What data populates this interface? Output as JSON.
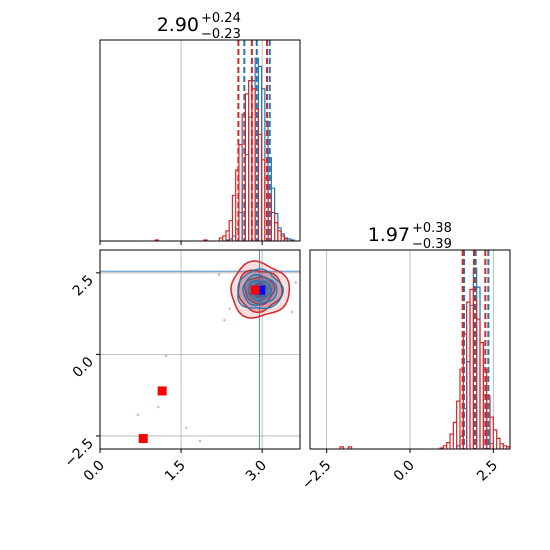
{
  "colors": {
    "blue": "#1f77b4",
    "red": "#d62728",
    "marker_blue": "#0000ff",
    "marker_red": "#ff0000",
    "grid": "#b0b0b0"
  },
  "chart_data": [
    {
      "type": "histogram",
      "panel": "x-marginal",
      "title": {
        "value": "2.90",
        "upper": "+0.24",
        "lower": "−0.23"
      },
      "xlim": [
        0,
        3.7
      ],
      "series": [
        {
          "name": "",
          "color": "#1f77b4",
          "x": [
            2.36,
            2.42,
            2.48,
            2.54,
            2.6,
            2.66,
            2.72,
            2.78,
            2.84,
            2.9,
            2.96,
            3.02,
            3.08,
            3.14,
            3.2,
            3.26,
            3.32,
            3.38,
            3.44,
            3.5,
            3.56
          ],
          "counts": [
            1,
            2,
            5,
            12,
            28,
            55,
            85,
            122,
            158,
            180,
            172,
            150,
            118,
            82,
            52,
            27,
            13,
            7,
            3,
            2,
            1
          ],
          "quantiles": [
            2.67,
            2.9,
            3.14
          ]
        },
        {
          "name": "",
          "color": "#d62728",
          "x": [
            1.05,
            1.95,
            2.24,
            2.3,
            2.36,
            2.42,
            2.48,
            2.54,
            2.6,
            2.66,
            2.72,
            2.78,
            2.84,
            2.9,
            2.96,
            3.02,
            3.08,
            3.14,
            3.2,
            3.26,
            3.32,
            3.38,
            3.44
          ],
          "counts": [
            1,
            1,
            3,
            5,
            10,
            20,
            45,
            70,
            95,
            125,
            145,
            158,
            150,
            130,
            105,
            80,
            62,
            45,
            28,
            18,
            10,
            5,
            2
          ],
          "quantiles": [
            2.56,
            2.81,
            3.09
          ]
        }
      ]
    },
    {
      "type": "histogram",
      "panel": "y-marginal",
      "title": {
        "value": "1.97",
        "upper": "+0.38",
        "lower": "−0.39"
      },
      "xlim": [
        -3.0,
        3.0
      ],
      "xticks": [
        "−2.5",
        "0.0",
        "2.5"
      ],
      "series": [
        {
          "name": "",
          "color": "#1f77b4",
          "x": [
            1.45,
            1.55,
            1.65,
            1.75,
            1.85,
            1.95,
            2.05,
            2.15,
            2.25,
            2.35,
            2.45
          ],
          "counts": [
            3,
            12,
            38,
            82,
            135,
            170,
            152,
            100,
            50,
            18,
            5
          ],
          "quantiles": [
            1.62,
            1.97,
            2.35
          ]
        },
        {
          "name": "",
          "color": "#d62728",
          "x": [
            -2.05,
            -1.8,
            0.95,
            1.05,
            1.15,
            1.25,
            1.35,
            1.45,
            1.55,
            1.65,
            1.75,
            1.85,
            1.95,
            2.05,
            2.15,
            2.25,
            2.35,
            2.45,
            2.55,
            2.65,
            2.75,
            2.85,
            2.95
          ],
          "counts": [
            2,
            2,
            1,
            3,
            6,
            14,
            25,
            45,
            75,
            108,
            138,
            150,
            140,
            122,
            100,
            75,
            50,
            30,
            18,
            10,
            5,
            3,
            2
          ],
          "quantiles": [
            1.58,
            1.92,
            2.26
          ]
        }
      ]
    },
    {
      "type": "scatter",
      "panel": "joint",
      "xlim": [
        0,
        3.7
      ],
      "ylim": [
        -2.9,
        3.2
      ],
      "xticks": [
        "0.0",
        "1.5",
        "3.0"
      ],
      "yticks": [
        "−2.5",
        "0.0",
        "2.5"
      ],
      "truth_lines": {
        "x": 2.95,
        "y": 2.55
      },
      "contours": {
        "center": [
          2.95,
          1.97
        ],
        "red_sigma": [
          0.27,
          0.42
        ],
        "blue_sigma": [
          0.21,
          0.3
        ],
        "levels": [
          0.5,
          1.0,
          1.5,
          2.0
        ]
      },
      "markers": [
        {
          "name": "blue-marker",
          "x": 2.97,
          "y": 1.97,
          "color": "#0000ff"
        },
        {
          "name": "red-marker-1",
          "x": 2.87,
          "y": 1.97,
          "color": "#ff0000"
        },
        {
          "name": "red-marker-2",
          "x": 1.15,
          "y": -1.12,
          "color": "#ff0000"
        },
        {
          "name": "red-marker-3",
          "x": 0.8,
          "y": -2.58,
          "color": "#ff0000"
        }
      ],
      "outliers": [
        [
          1.22,
          -0.05
        ],
        [
          0.7,
          -1.85
        ],
        [
          1.08,
          -1.62
        ],
        [
          1.6,
          -2.25
        ],
        [
          1.85,
          -2.65
        ],
        [
          2.2,
          2.45
        ],
        [
          2.4,
          1.4
        ],
        [
          3.55,
          1.3
        ],
        [
          3.62,
          2.2
        ],
        [
          2.3,
          1.05
        ]
      ]
    }
  ]
}
